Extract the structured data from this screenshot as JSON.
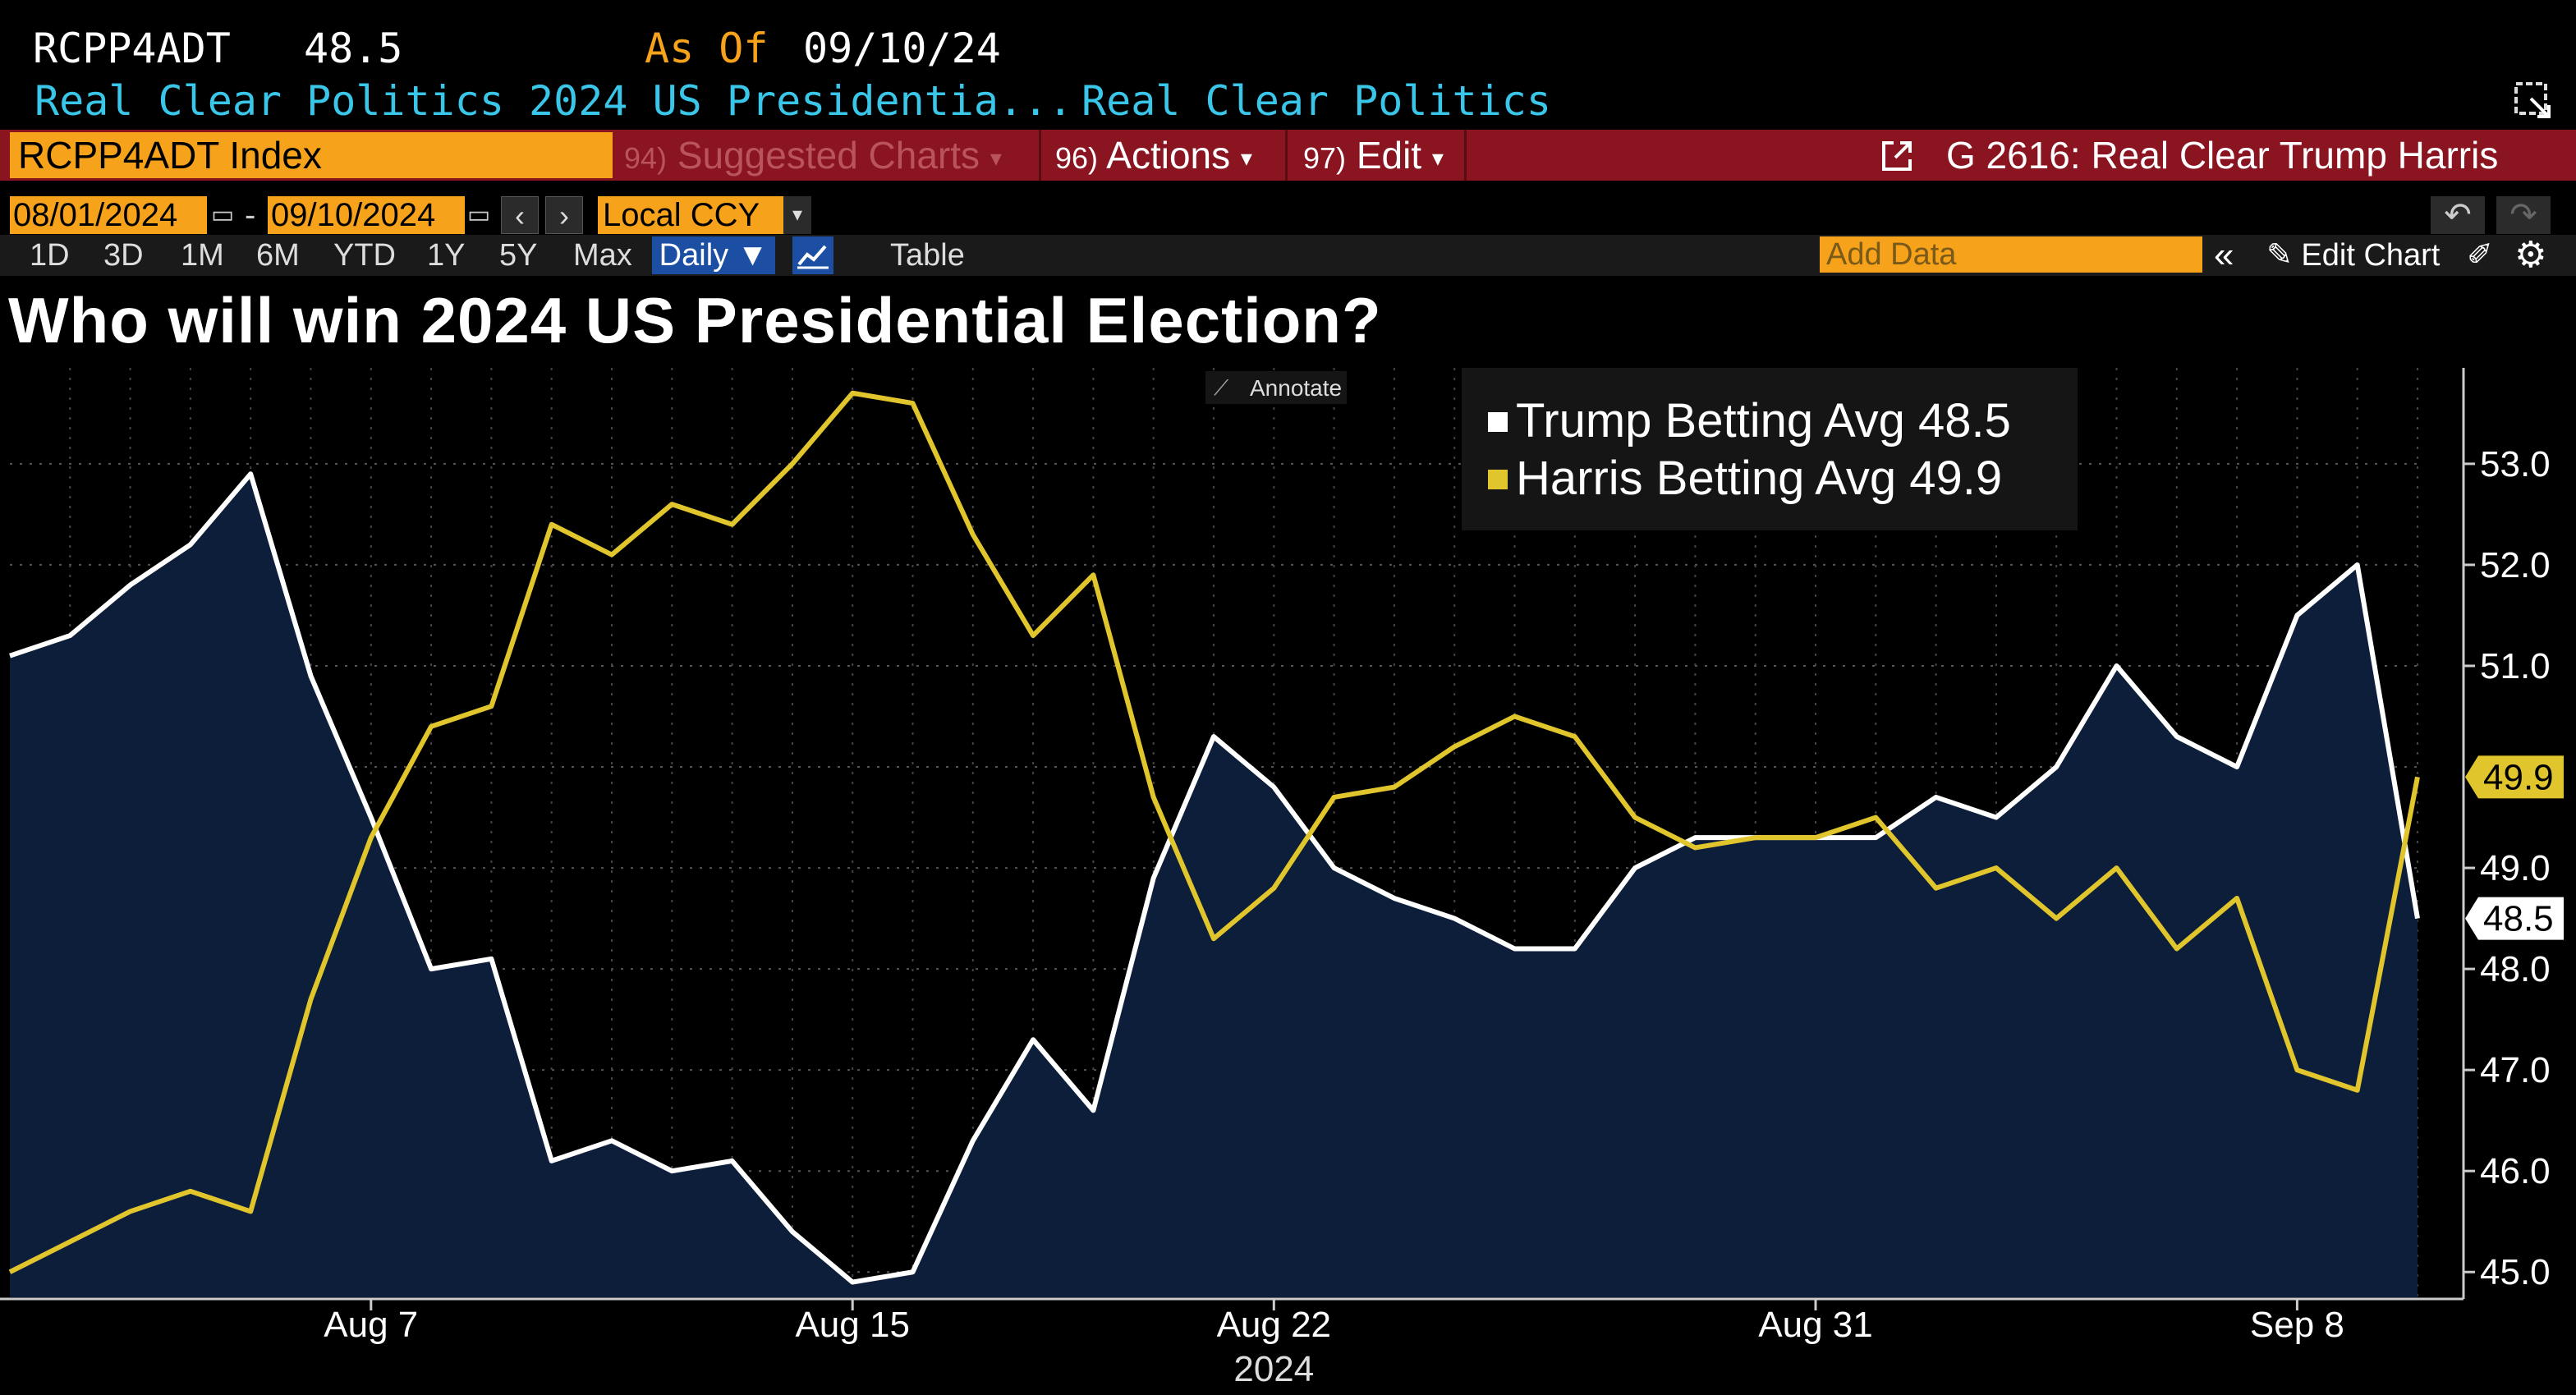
{
  "header": {
    "ticker": "RCPP4ADT",
    "last_value": "48.5",
    "as_of_label": "As Of",
    "as_of_date": "09/10/24",
    "description": "Real Clear Politics 2024 US Presidentia...",
    "source": "Real Clear Politics"
  },
  "menubar": {
    "security": "RCPP4ADT Index",
    "suggested_num": "94)",
    "suggested_label": "Suggested Charts",
    "actions_num": "96)",
    "actions_label": "Actions",
    "edit_num": "97)",
    "edit_label": "Edit",
    "chart_title": "G 2616: Real Clear Trump Harris"
  },
  "controls": {
    "start_date": "08/01/2024",
    "date_separator": "-",
    "end_date": "09/10/2024",
    "currency": "Local CCY",
    "ranges": [
      "1D",
      "3D",
      "1M",
      "6M",
      "YTD",
      "1Y",
      "5Y",
      "Max"
    ],
    "frequency": "Daily ▼",
    "table_label": "Table",
    "add_data_placeholder": "Add Data",
    "edit_chart_label": "Edit Chart"
  },
  "chart_data": {
    "type": "line",
    "title": "Who will win 2024 US Presidential Election?",
    "annotate_label": "Annotate",
    "xlabel": "2024",
    "x_tick_labels": [
      "Aug 7",
      "Aug 15",
      "Aug 22",
      "Aug 31",
      "Sep 8"
    ],
    "x_tick_index": [
      6,
      14,
      21,
      30,
      38
    ],
    "ylim": [
      44.75,
      53.95
    ],
    "y_ticks": [
      45.0,
      46.0,
      47.0,
      48.0,
      49.0,
      50.0,
      51.0,
      52.0,
      53.0
    ],
    "y_tick_labels": [
      "45.0",
      "46.0",
      "47.0",
      "48.0",
      "49.0",
      "51.0",
      "52.0",
      "53.0"
    ],
    "y_tick_label_values": [
      45.0,
      46.0,
      47.0,
      48.0,
      49.0,
      51.0,
      52.0,
      53.0
    ],
    "series": [
      {
        "name": "Trump Betting Avg",
        "legend": "Trump Betting Avg 48.5",
        "last_label": "48.5",
        "color": "#ffffff",
        "fill": "#0c1e3a",
        "values": [
          51.1,
          51.3,
          51.8,
          52.2,
          52.9,
          50.9,
          49.5,
          48.0,
          48.1,
          46.1,
          46.3,
          46.0,
          46.1,
          45.4,
          44.9,
          45.0,
          46.3,
          47.3,
          46.6,
          48.9,
          50.3,
          49.8,
          49.0,
          48.7,
          48.5,
          48.2,
          48.2,
          49.0,
          49.3,
          49.3,
          49.3,
          49.3,
          49.7,
          49.5,
          50.0,
          51.0,
          50.3,
          50.0,
          51.5,
          52.0,
          48.5
        ]
      },
      {
        "name": "Harris Betting Avg",
        "legend": "Harris Betting Avg 49.9",
        "last_label": "49.9",
        "color": "#e1c52c",
        "values": [
          45.0,
          45.3,
          45.6,
          45.8,
          45.6,
          47.7,
          49.3,
          50.4,
          50.6,
          52.4,
          52.1,
          52.6,
          52.4,
          53.0,
          53.7,
          53.6,
          52.3,
          51.3,
          51.9,
          49.7,
          48.3,
          48.8,
          49.7,
          49.8,
          50.2,
          50.5,
          50.3,
          49.5,
          49.2,
          49.3,
          49.3,
          49.5,
          48.8,
          49.0,
          48.5,
          49.0,
          48.2,
          48.7,
          47.0,
          46.8,
          49.9
        ]
      }
    ]
  }
}
